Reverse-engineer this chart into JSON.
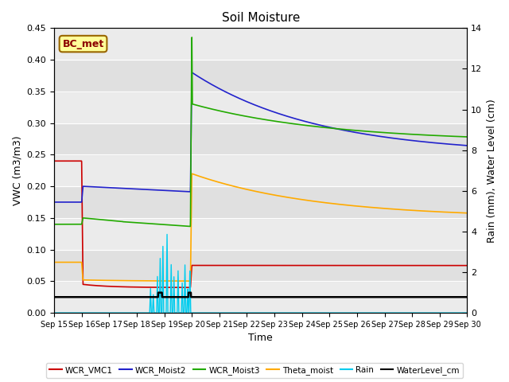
{
  "title": "Soil Moisture",
  "xlabel": "Time",
  "ylabel_left": "VWC (m3/m3)",
  "ylabel_right": "Rain (mm), Water Level (cm)",
  "xlim_days": [
    0,
    15
  ],
  "ylim_left": [
    0.0,
    0.45
  ],
  "ylim_right": [
    0,
    14
  ],
  "annotation_box": "BC_met",
  "bg_light": "#ebebeb",
  "bg_dark": "#d8d8d8",
  "tick_labels": [
    "Sep 15",
    "Sep 16",
    "Sep 17",
    "Sep 18",
    "Sep 19",
    "Sep 20",
    "Sep 21",
    "Sep 22",
    "Sep 23",
    "Sep 24",
    "Sep 25",
    "Sep 26",
    "Sep 27",
    "Sep 28",
    "Sep 29",
    "Sep 30"
  ],
  "yticks_left": [
    0.0,
    0.05,
    0.1,
    0.15,
    0.2,
    0.25,
    0.3,
    0.35,
    0.4,
    0.45
  ],
  "yticks_right": [
    0,
    2,
    4,
    6,
    8,
    10,
    12,
    14
  ],
  "series": {
    "WCR_VMC1": {
      "color": "#cc0000",
      "linewidth": 1.2
    },
    "WCR_Moist2": {
      "color": "#2222cc",
      "linewidth": 1.2
    },
    "WCR_Moist3": {
      "color": "#22aa00",
      "linewidth": 1.2
    },
    "Theta_moist": {
      "color": "#ffaa00",
      "linewidth": 1.2
    },
    "Rain": {
      "color": "#00ccee",
      "linewidth": 1.0
    },
    "WaterLevel_cm": {
      "color": "#000000",
      "linewidth": 1.8
    }
  }
}
